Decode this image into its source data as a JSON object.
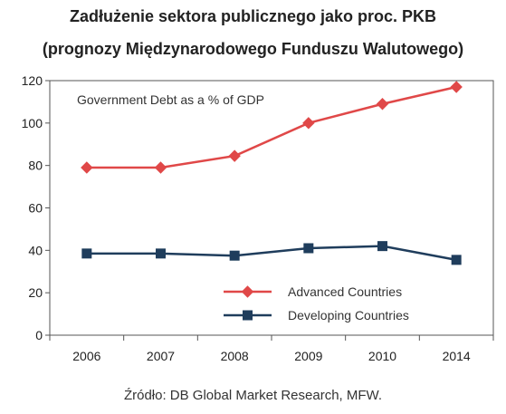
{
  "header": {
    "title_line1": "Zadłużenie sektora publicznego jako proc. PKB",
    "title_line2": "(prognozy Międzynarodowego Funduszu Walutowego)"
  },
  "footer": {
    "source": "Źródło: DB Global Market Research, MFW."
  },
  "chart_data": {
    "type": "line",
    "title": "Government Debt as a % of GDP",
    "categories": [
      "2006",
      "2007",
      "2008",
      "2009",
      "2010",
      "2014"
    ],
    "ylim": [
      0,
      120
    ],
    "yticks": [
      "0",
      "20",
      "40",
      "60",
      "80",
      "100",
      "120"
    ],
    "grid": false,
    "legend": "bottom-right",
    "series": [
      {
        "name": "Advanced Countries",
        "color": "#e04848",
        "marker": "diamond",
        "values": [
          79,
          79,
          84.5,
          100,
          109,
          117
        ]
      },
      {
        "name": "Developing Countries",
        "color": "#1f3d5c",
        "marker": "square",
        "values": [
          38.5,
          38.5,
          37.5,
          41,
          42,
          35.5
        ]
      }
    ]
  }
}
